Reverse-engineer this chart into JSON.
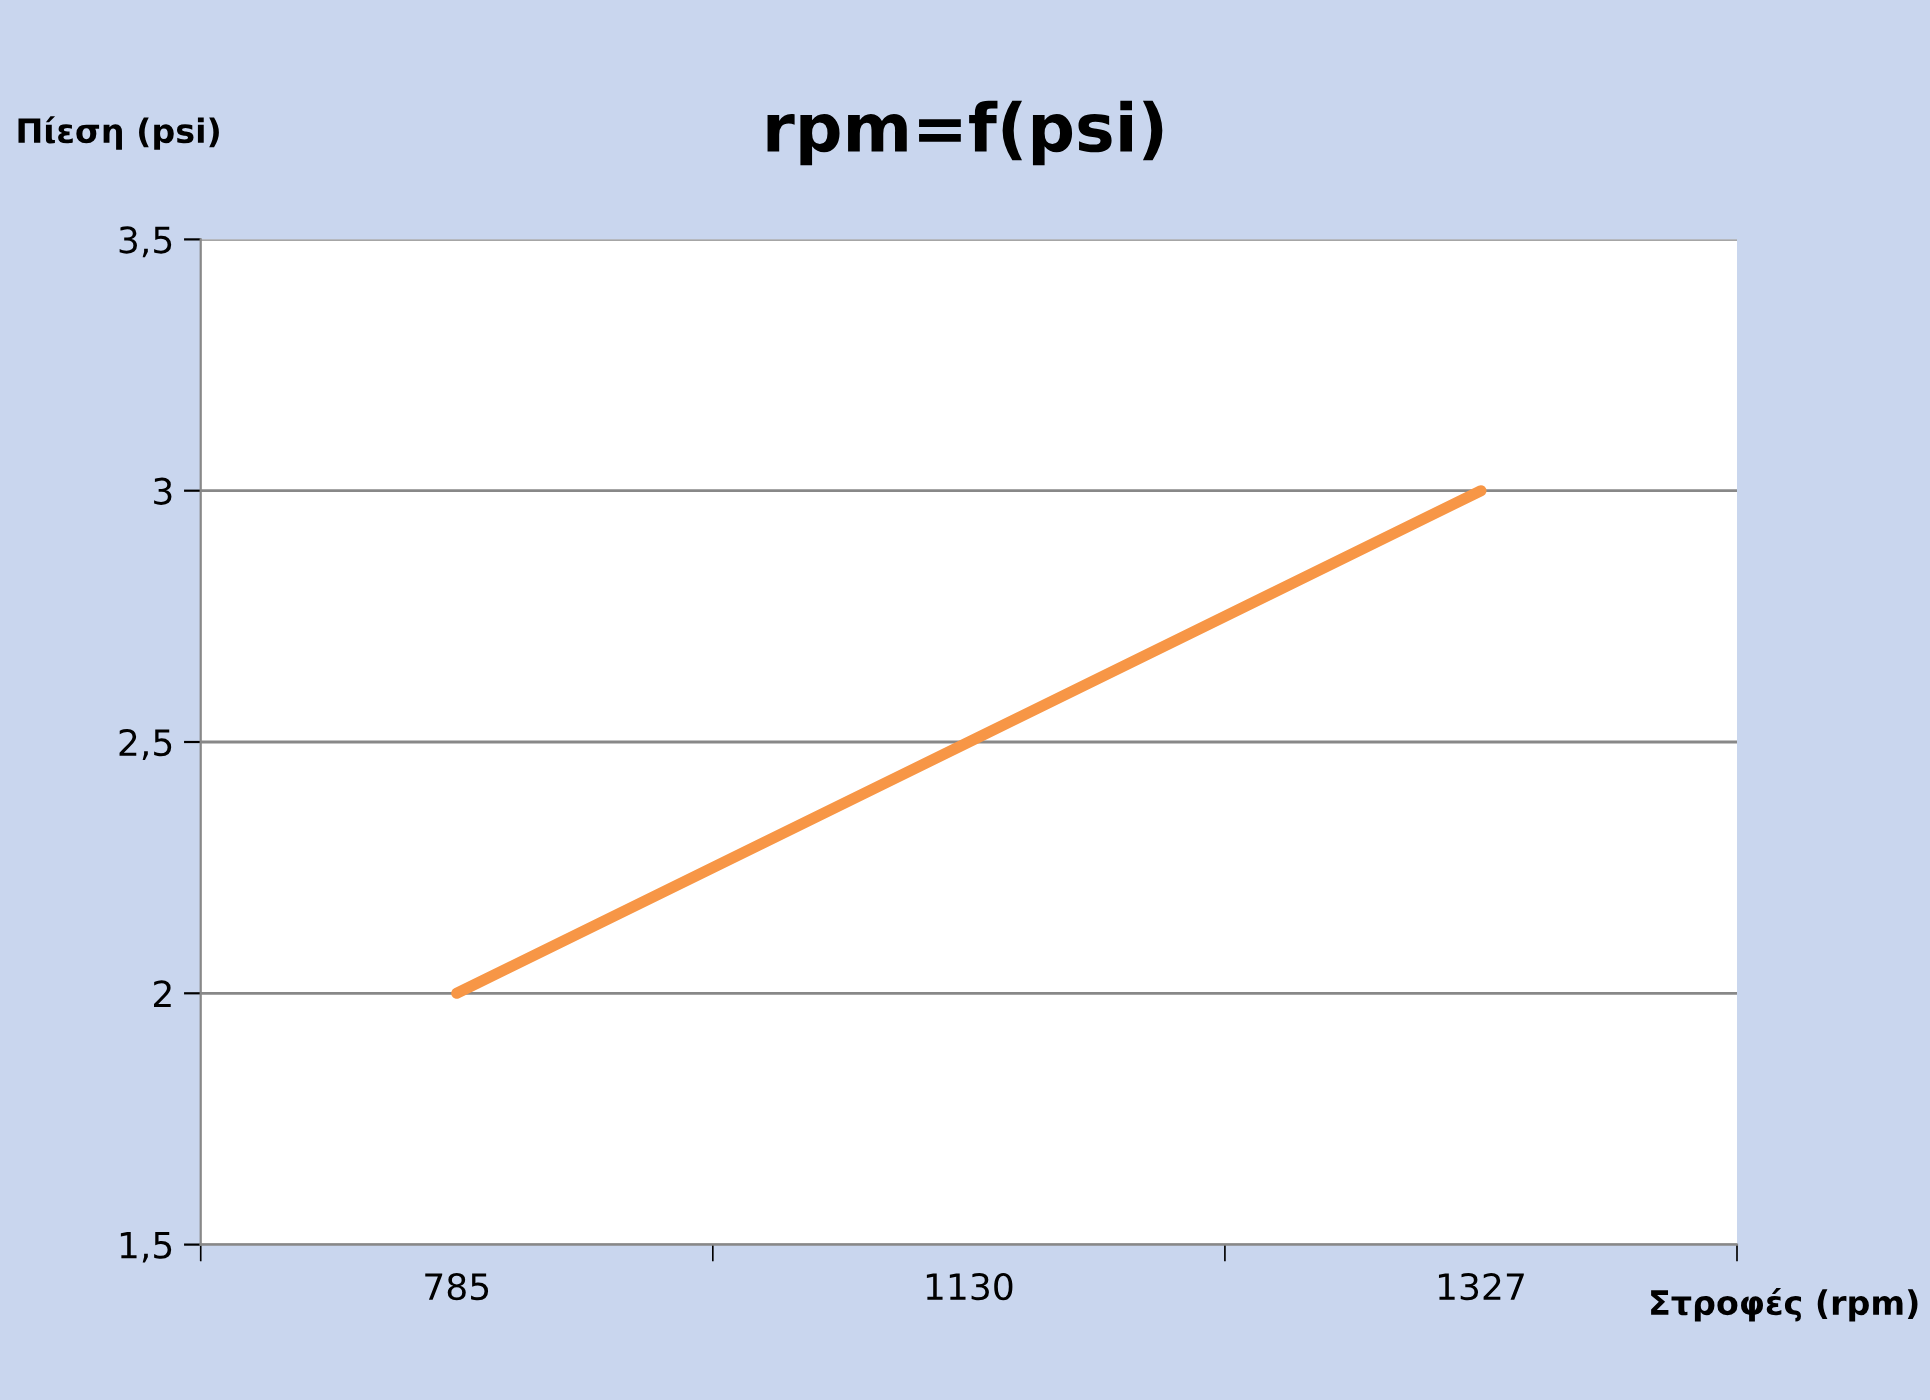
{
  "chart_data": {
    "type": "line",
    "title": "rpm=f(psi)",
    "xlabel": "Στροφές (rpm)",
    "ylabel": "Πίεση (psi)",
    "categories": [
      "785",
      "1130",
      "1327"
    ],
    "series": [
      {
        "color": "#f79646",
        "values": [
          2,
          2.5,
          3
        ]
      }
    ],
    "ylim": [
      1.5,
      3.5
    ],
    "yticks": [
      {
        "value": 1.5,
        "label": "1,5"
      },
      2,
      {
        "value": 2.5,
        "label": "2,5"
      },
      3,
      {
        "value": 3.5,
        "label": "3,5"
      }
    ],
    "grid": "y",
    "marker": "none",
    "line_style": "solid"
  }
}
